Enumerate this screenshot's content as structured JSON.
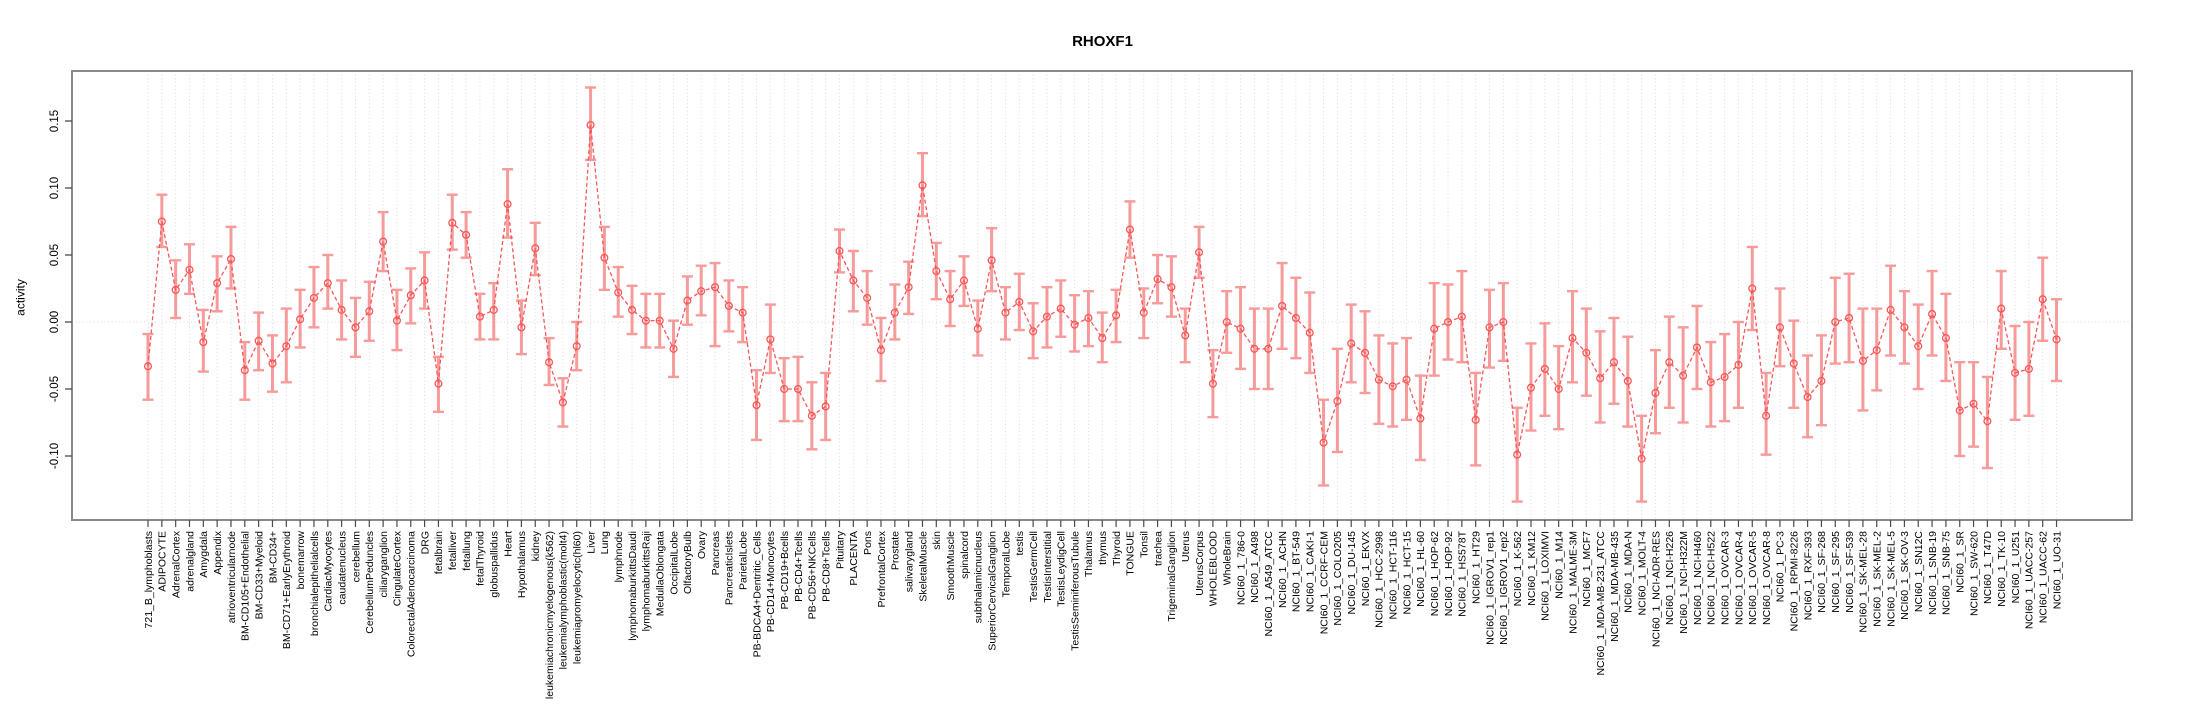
{
  "chart_data": {
    "type": "scatter",
    "title": "RHOXF1",
    "ylabel": "activity",
    "xlabel": "",
    "legend": "none",
    "grid": "vertical dotted line per category; horizontal dotted line at y=0",
    "ylim": [
      -0.155,
      0.185
    ],
    "yticks": [
      0.15,
      0.1,
      0.05,
      0.0,
      -0.05,
      -0.1
    ],
    "ytick_labels": [
      "0.15",
      "0.10",
      "0.05",
      "0.00",
      "-0.05",
      "-0.10"
    ],
    "colors": {
      "point": "#f75757",
      "errorbar": "#f79a9a",
      "frame": "#8a8a8a",
      "grid": "#d9d9d9",
      "tick": "#4a4a4a",
      "text": "#000000"
    },
    "categories": [
      "721_B_lymphoblasts",
      "ADIPOCYTE",
      "AdrenalCortex",
      "adrenalgland",
      "Amygdala",
      "Appendix",
      "atrioventricularnode",
      "BM-CD105+Endothelial",
      "BM-CD33+Myeloid",
      "BM-CD34+",
      "BM-CD71+EarlyErythroid",
      "bonemarrow",
      "bronchialepithelialcells",
      "CardiacMyocytes",
      "caudatenucleus",
      "cerebellum",
      "CerebellumPeduncles",
      "ciliaryganglion",
      "CingulateCortex",
      "ColorectalAdenocarcinoma",
      "DRG",
      "fetalbrain",
      "fetalliver",
      "fetallung",
      "fetalThyroid",
      "globuspallidus",
      "Heart",
      "Hypothalamus",
      "kidney",
      "leukemiachronicmyelogenous(k562)",
      "leukemialymphoblastic(molt4)",
      "leukemiapromyelocytic(hl60)",
      "Liver",
      "Lung",
      "lymphnode",
      "lymphomaburkittsDaudi",
      "lymphomaburkittsRaji",
      "MedullaOblongata",
      "OccipitalLobe",
      "OlfactoryBulb",
      "Ovary",
      "Pancreas",
      "PancreaticIslets",
      "ParietalLobe",
      "PB-BDCA4+Dentritic_Cells",
      "PB-CD14+Monocytes",
      "PB-CD19+Bcells",
      "PB-CD4+Tcells",
      "PB-CD56+NKCells",
      "PB-CD8+Tcells",
      "Pituitary",
      "PLACENTA",
      "Pons",
      "PrefrontalCortex",
      "Prostate",
      "salivarygland",
      "SkeletalMuscle",
      "skin",
      "SmoothMuscle",
      "spinalcord",
      "subthalamicnucleus",
      "SuperiorCervicalGanglion",
      "TemporalLobe",
      "testis",
      "TestisGermCell",
      "TestisInterstitial",
      "TestisLeydigCell",
      "TestisSeminiferousTubule",
      "Thalamus",
      "thymus",
      "Thyroid",
      "TONGUE",
      "Tonsil",
      "trachea",
      "TrigeminalGanglion",
      "Uterus",
      "UterusCorpus",
      "WHOLEBLOOD",
      "WholeBrain",
      "NCI60_1_786-0",
      "NCI60_1_A498",
      "NCI60_1_A549_ATCC",
      "NCI60_1_ACHN",
      "NCI60_1_BT-549",
      "NCI60_1_CAKI-1",
      "NCI60_1_CCRF-CEM",
      "NCI60_1_COLO205",
      "NCI60_1_DU-145",
      "NCI60_1_EKVX",
      "NCI60_1_HCC-2998",
      "NCI60_1_HCT-116",
      "NCI60_1_HCT-15",
      "NCI60_1_HL-60",
      "NCI60_1_HOP-62",
      "NCI60_1_HOP-92",
      "NCI60_1_HS578T",
      "NCI60_1_HT29",
      "NCI60_1_IGROV1_rep1",
      "NCI60_1_IGROV1_rep2",
      "NCI60_1_K-562",
      "NCI60_1_KM12",
      "NCI60_1_LOXIMVI",
      "NCI60_1_M14",
      "NCI60_1_MALME-3M",
      "NCI60_1_MCF7",
      "NCI60_1_MDA-MB-231_ATCC",
      "NCI60_1_MDA-MB-435",
      "NCI60_1_MDA-N",
      "NCI60_1_MOLT-4",
      "NCI60_1_NCI-ADR-RES",
      "NCI60_1_NCI-H226",
      "NCI60_1_NCI-H322M",
      "NCI60_1_NCI-H460",
      "NCI60_1_NCI-H522",
      "NCI60_1_OVCAR-3",
      "NCI60_1_OVCAR-4",
      "NCI60_1_OVCAR-5",
      "NCI60_1_OVCAR-8",
      "NCI60_1_PC-3",
      "NCI60_1_RPMI-8226",
      "NCI60_1_RXF-393",
      "NCI60_1_SF-268",
      "NCI60_1_SF-295",
      "NCI60_1_SF-539",
      "NCI60_1_SK-MEL-28",
      "NCI60_1_SK-MEL-2",
      "NCI60_1_SK-MEL-5",
      "NCI60_1_SK-OV-3",
      "NCI60_1_SN12C",
      "NCI60_1_SNB-19",
      "NCI60_1_SNB-75",
      "NCI60_1_SR",
      "NCI60_1_SW-620",
      "NCI60_1_T47D",
      "NCI60_1_TK-10",
      "NCI60_1_U251",
      "NCI60_1_UACC-257",
      "NCI60_1_UACC-62",
      "NCI60_1_UO-31"
    ],
    "values": [
      -0.033,
      0.075,
      0.024,
      0.039,
      -0.015,
      0.029,
      0.047,
      -0.036,
      -0.014,
      -0.031,
      -0.018,
      0.002,
      0.018,
      0.029,
      0.009,
      -0.004,
      0.008,
      0.06,
      0.001,
      0.02,
      0.031,
      -0.046,
      0.074,
      0.065,
      0.004,
      0.009,
      0.088,
      -0.004,
      0.055,
      -0.03,
      -0.06,
      -0.018,
      0.147,
      0.048,
      0.022,
      0.009,
      0.001,
      0.001,
      -0.02,
      0.016,
      0.023,
      0.026,
      0.012,
      0.007,
      -0.062,
      -0.013,
      -0.05,
      -0.05,
      -0.07,
      -0.063,
      0.053,
      0.031,
      0.018,
      -0.021,
      0.007,
      0.026,
      0.102,
      0.038,
      0.017,
      0.031,
      -0.005,
      0.046,
      0.007,
      0.015,
      -0.007,
      0.004,
      0.01,
      -0.002,
      0.003,
      -0.012,
      0.005,
      0.069,
      0.007,
      0.032,
      0.026,
      -0.01,
      0.052,
      -0.046,
      0.0,
      -0.005,
      -0.02,
      -0.02,
      0.012,
      0.003,
      -0.008,
      -0.09,
      -0.059,
      -0.016,
      -0.023,
      -0.043,
      -0.048,
      -0.043,
      -0.072,
      -0.005,
      0.0,
      0.004,
      -0.073,
      -0.004,
      0.0,
      -0.099,
      -0.049,
      -0.035,
      -0.05,
      -0.012,
      -0.023,
      -0.042,
      -0.03,
      -0.044,
      -0.102,
      -0.053,
      -0.03,
      -0.04,
      -0.019,
      -0.045,
      -0.041,
      -0.032,
      0.025,
      -0.07,
      -0.004,
      -0.031,
      -0.056,
      -0.044,
      0.0,
      0.003,
      -0.029,
      -0.021,
      0.009,
      -0.004,
      -0.018,
      0.006,
      -0.012,
      -0.066,
      -0.061,
      -0.074,
      0.01,
      -0.038,
      -0.035,
      0.017,
      -0.013
    ],
    "err_lo": [
      -0.058,
      0.056,
      0.003,
      0.021,
      -0.037,
      0.008,
      0.025,
      -0.058,
      -0.036,
      -0.052,
      -0.045,
      -0.019,
      -0.004,
      0.01,
      -0.013,
      -0.026,
      -0.014,
      0.038,
      -0.021,
      -0.001,
      0.01,
      -0.067,
      0.054,
      0.048,
      -0.013,
      -0.013,
      0.063,
      -0.024,
      0.035,
      -0.047,
      -0.078,
      -0.036,
      0.121,
      0.024,
      0.004,
      -0.009,
      -0.019,
      -0.019,
      -0.041,
      -0.002,
      0.005,
      -0.018,
      -0.007,
      -0.015,
      -0.088,
      -0.038,
      -0.074,
      -0.074,
      -0.095,
      -0.088,
      0.037,
      0.008,
      -0.002,
      -0.044,
      -0.013,
      0.006,
      0.079,
      0.017,
      -0.003,
      0.012,
      -0.025,
      0.023,
      -0.013,
      -0.006,
      -0.027,
      -0.019,
      -0.011,
      -0.022,
      -0.018,
      -0.03,
      -0.015,
      0.048,
      -0.012,
      0.014,
      0.004,
      -0.03,
      0.033,
      -0.071,
      -0.023,
      -0.035,
      -0.05,
      -0.05,
      -0.02,
      -0.027,
      -0.038,
      -0.122,
      -0.097,
      -0.045,
      -0.053,
      -0.076,
      -0.078,
      -0.073,
      -0.103,
      -0.04,
      -0.028,
      -0.03,
      -0.107,
      -0.034,
      -0.029,
      -0.134,
      -0.081,
      -0.07,
      -0.08,
      -0.045,
      -0.055,
      -0.075,
      -0.061,
      -0.078,
      -0.134,
      -0.083,
      -0.064,
      -0.075,
      -0.05,
      -0.078,
      -0.074,
      -0.064,
      -0.006,
      -0.099,
      -0.033,
      -0.064,
      -0.086,
      -0.077,
      -0.031,
      -0.03,
      -0.066,
      -0.051,
      -0.025,
      -0.031,
      -0.05,
      -0.025,
      -0.044,
      -0.1,
      -0.093,
      -0.109,
      -0.02,
      -0.073,
      -0.07,
      -0.014,
      -0.044
    ],
    "err_hi": [
      -0.009,
      0.095,
      0.046,
      0.058,
      0.009,
      0.049,
      0.071,
      -0.015,
      0.007,
      -0.01,
      0.01,
      0.024,
      0.041,
      0.05,
      0.031,
      0.018,
      0.03,
      0.082,
      0.024,
      0.04,
      0.052,
      -0.026,
      0.095,
      0.082,
      0.021,
      0.029,
      0.114,
      0.016,
      0.074,
      -0.012,
      -0.042,
      0.0,
      0.175,
      0.071,
      0.041,
      0.027,
      0.021,
      0.021,
      0.001,
      0.034,
      0.042,
      0.044,
      0.031,
      0.026,
      -0.036,
      0.013,
      -0.027,
      -0.026,
      -0.045,
      -0.038,
      0.069,
      0.053,
      0.038,
      0.003,
      0.028,
      0.045,
      0.126,
      0.059,
      0.038,
      0.049,
      0.016,
      0.07,
      0.026,
      0.036,
      0.014,
      0.026,
      0.031,
      0.02,
      0.023,
      0.007,
      0.024,
      0.09,
      0.025,
      0.05,
      0.049,
      0.01,
      0.071,
      -0.021,
      0.023,
      0.026,
      0.01,
      0.01,
      0.044,
      0.033,
      0.022,
      -0.058,
      -0.02,
      0.013,
      0.008,
      -0.01,
      -0.016,
      -0.012,
      -0.04,
      0.029,
      0.028,
      0.038,
      -0.038,
      0.024,
      0.029,
      -0.064,
      -0.016,
      -0.001,
      -0.018,
      0.023,
      0.01,
      -0.007,
      0.003,
      -0.011,
      -0.07,
      -0.021,
      0.004,
      -0.004,
      0.012,
      -0.015,
      -0.009,
      0.0,
      0.056,
      -0.038,
      0.025,
      0.001,
      -0.025,
      -0.01,
      0.033,
      0.036,
      0.01,
      0.01,
      0.042,
      0.023,
      0.013,
      0.038,
      0.021,
      -0.03,
      -0.03,
      -0.041,
      0.038,
      -0.003,
      0.0,
      0.048,
      0.017
    ]
  }
}
